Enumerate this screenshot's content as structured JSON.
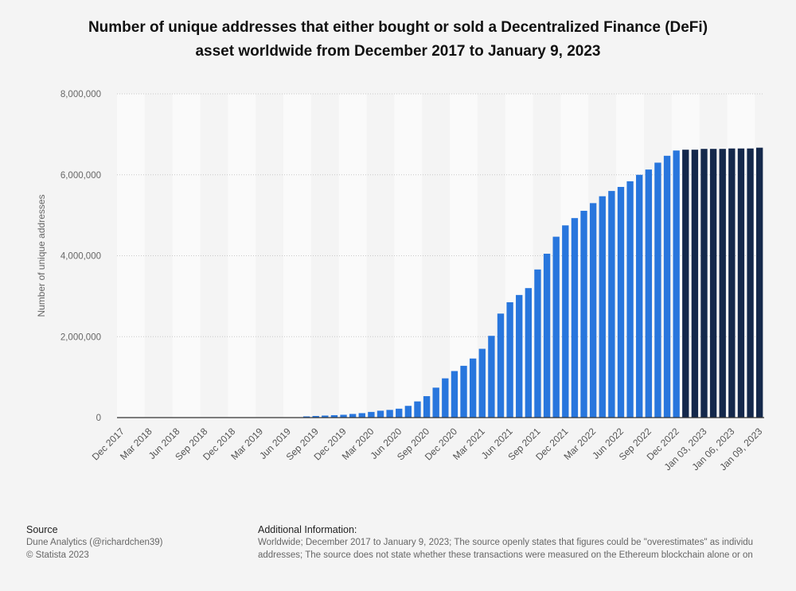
{
  "chart_data": {
    "type": "bar",
    "title": "Number of unique addresses that either bought or sold a Decentralized Finance (DeFi) asset worldwide from December 2017 to January 9, 2023",
    "y_label": "Number of unique addresses",
    "categories": [
      "Dec 2017",
      null,
      null,
      "Mar 2018",
      null,
      null,
      "Jun 2018",
      null,
      null,
      "Sep 2018",
      null,
      null,
      "Dec 2018",
      null,
      null,
      "Mar 2019",
      null,
      null,
      "Jun 2019",
      null,
      null,
      "Sep 2019",
      null,
      null,
      "Dec 2019",
      null,
      null,
      "Mar 2020",
      null,
      null,
      "Jun 2020",
      null,
      null,
      "Sep 2020",
      null,
      null,
      "Dec 2020",
      null,
      null,
      "Mar 2021",
      null,
      null,
      "Jun 2021",
      null,
      null,
      "Sep 2021",
      null,
      null,
      "Dec 2021",
      null,
      null,
      "Mar 2022",
      null,
      null,
      "Jun 2022",
      null,
      null,
      "Sep 2022",
      null,
      null,
      "Dec 2022",
      null,
      null,
      "Jan 03, 2023",
      null,
      null,
      "Jan 06, 2023",
      null,
      null,
      "Jan 09, 2023"
    ],
    "values": [
      0,
      0,
      0,
      0,
      0,
      0,
      0,
      0,
      0,
      0,
      0,
      0,
      0,
      0,
      0,
      0,
      0,
      0,
      0,
      5000,
      30000,
      40000,
      50000,
      60000,
      70000,
      90000,
      110000,
      140000,
      170000,
      190000,
      220000,
      290000,
      400000,
      530000,
      740000,
      970000,
      1150000,
      1280000,
      1460000,
      1700000,
      2020000,
      2570000,
      2850000,
      3030000,
      3200000,
      3660000,
      4050000,
      4470000,
      4750000,
      4930000,
      5110000,
      5300000,
      5470000,
      5600000,
      5700000,
      5840000,
      6000000,
      6130000,
      6300000,
      6470000,
      6600000,
      6620000,
      6620000,
      6640000,
      6640000,
      6640000,
      6650000,
      6650000,
      6650000,
      6670000
    ],
    "colors": [
      "#2876dd",
      "#2876dd",
      "#2876dd",
      "#2876dd",
      "#2876dd",
      "#2876dd",
      "#2876dd",
      "#2876dd",
      "#2876dd",
      "#2876dd",
      "#2876dd",
      "#2876dd",
      "#2876dd",
      "#2876dd",
      "#2876dd",
      "#2876dd",
      "#2876dd",
      "#2876dd",
      "#2876dd",
      "#2876dd",
      "#2876dd",
      "#2876dd",
      "#2876dd",
      "#2876dd",
      "#2876dd",
      "#2876dd",
      "#2876dd",
      "#2876dd",
      "#2876dd",
      "#2876dd",
      "#2876dd",
      "#2876dd",
      "#2876dd",
      "#2876dd",
      "#2876dd",
      "#2876dd",
      "#2876dd",
      "#2876dd",
      "#2876dd",
      "#2876dd",
      "#2876dd",
      "#2876dd",
      "#2876dd",
      "#2876dd",
      "#2876dd",
      "#2876dd",
      "#2876dd",
      "#2876dd",
      "#2876dd",
      "#2876dd",
      "#2876dd",
      "#2876dd",
      "#2876dd",
      "#2876dd",
      "#2876dd",
      "#2876dd",
      "#2876dd",
      "#2876dd",
      "#2876dd",
      "#2876dd",
      "#2876dd",
      "#14284b",
      "#14284b",
      "#14284b",
      "#14284b",
      "#14284b",
      "#14284b",
      "#14284b",
      "#14284b",
      "#14284b"
    ],
    "ylim": [
      0,
      8000000
    ],
    "yticks": [
      0,
      {
        "value": 2000000,
        "label": "2,000,000"
      },
      {
        "value": 4000000,
        "label": "4,000,000"
      },
      {
        "value": 6000000,
        "label": "6,000,000"
      },
      {
        "value": 8000000,
        "label": "8,000,000"
      }
    ],
    "grid": true
  },
  "footer": {
    "source_title": "Source",
    "source_lines": [
      "Dune Analytics (@richardchen39)",
      "© Statista 2023"
    ],
    "info_title": "Additional Information:",
    "info_lines": [
      "Worldwide; December 2017 to January 9, 2023; The source openly states that figures could be \"overestimates\" as individu",
      "addresses; The source does not state whether these transactions were measured on the Ethereum blockchain alone or on"
    ]
  }
}
